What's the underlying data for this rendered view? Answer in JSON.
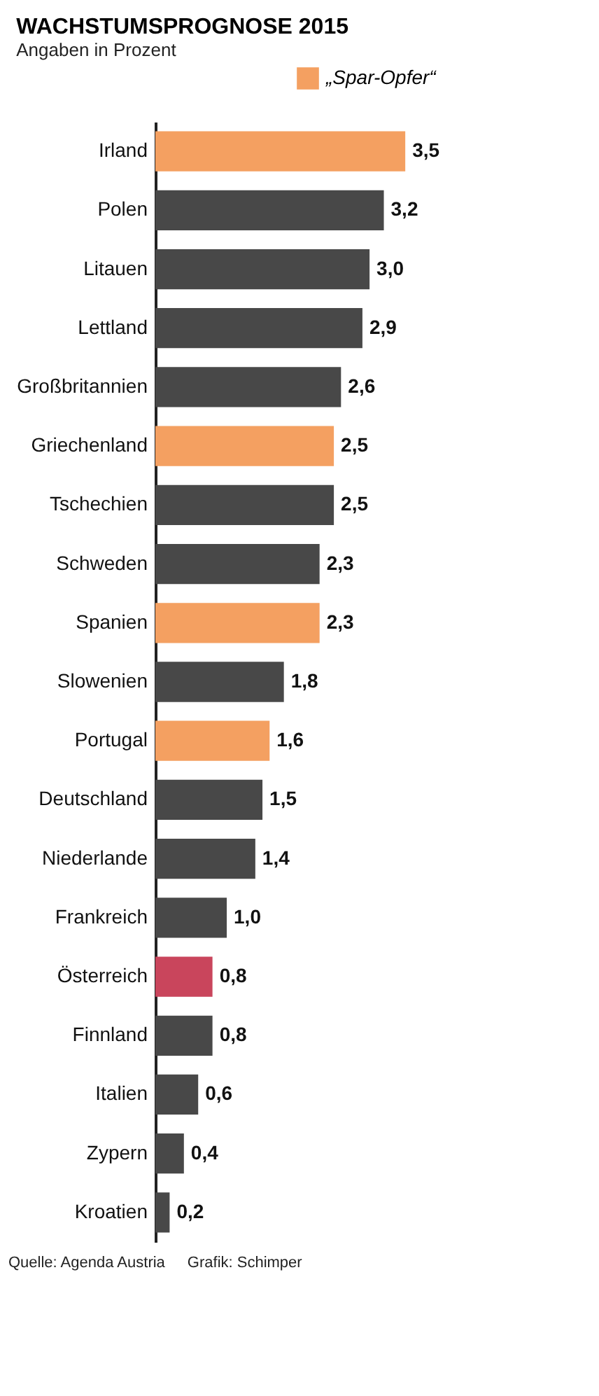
{
  "chart_data": {
    "type": "bar",
    "orientation": "horizontal",
    "title": "WACHSTUMSPROGNOSE 2015",
    "subtitle": "Angaben in Prozent",
    "categories": [
      "Irland",
      "Polen",
      "Litauen",
      "Lettland",
      "Großbritannien",
      "Griechenland",
      "Tschechien",
      "Schweden",
      "Spanien",
      "Slowenien",
      "Portugal",
      "Deutschland",
      "Niederlande",
      "Frankreich",
      "Österreich",
      "Finnland",
      "Italien",
      "Zypern",
      "Kroatien"
    ],
    "series": [
      {
        "name": "„Spar-Opfer“",
        "color": "#f4a061",
        "values": [
          3.5,
          null,
          null,
          null,
          null,
          2.5,
          null,
          null,
          2.3,
          null,
          1.6,
          null,
          null,
          null,
          null,
          null,
          null,
          null,
          null
        ],
        "value_labels": [
          "3,5",
          null,
          null,
          null,
          null,
          "2,5",
          null,
          null,
          "2,3",
          null,
          "1,6",
          null,
          null,
          null,
          null,
          null,
          null,
          null,
          null
        ]
      },
      {
        "color": "#484848",
        "values": [
          null,
          3.2,
          3.0,
          2.9,
          2.6,
          null,
          2.5,
          2.3,
          null,
          1.8,
          null,
          1.5,
          1.4,
          1.0,
          null,
          0.8,
          0.6,
          0.4,
          0.2
        ],
        "value_labels": [
          null,
          "3,2",
          "3,0",
          "2,9",
          "2,6",
          null,
          "2,5",
          "2,3",
          null,
          "1,8",
          null,
          "1,5",
          "1,4",
          "1,0",
          null,
          "0,8",
          "0,6",
          "0,4",
          "0,2"
        ]
      },
      {
        "color": "#c9455c",
        "values": [
          null,
          null,
          null,
          null,
          null,
          null,
          null,
          null,
          null,
          null,
          null,
          null,
          null,
          null,
          0.8,
          null,
          null,
          null,
          null
        ],
        "value_labels": [
          null,
          null,
          null,
          null,
          null,
          null,
          null,
          null,
          null,
          null,
          null,
          null,
          null,
          null,
          "0,8",
          null,
          null,
          null,
          null
        ]
      }
    ],
    "legend": "top right",
    "tick_labels": "y",
    "annotations": [
      "Quelle: Agenda Austria",
      "Grafik: Schimper"
    ]
  }
}
